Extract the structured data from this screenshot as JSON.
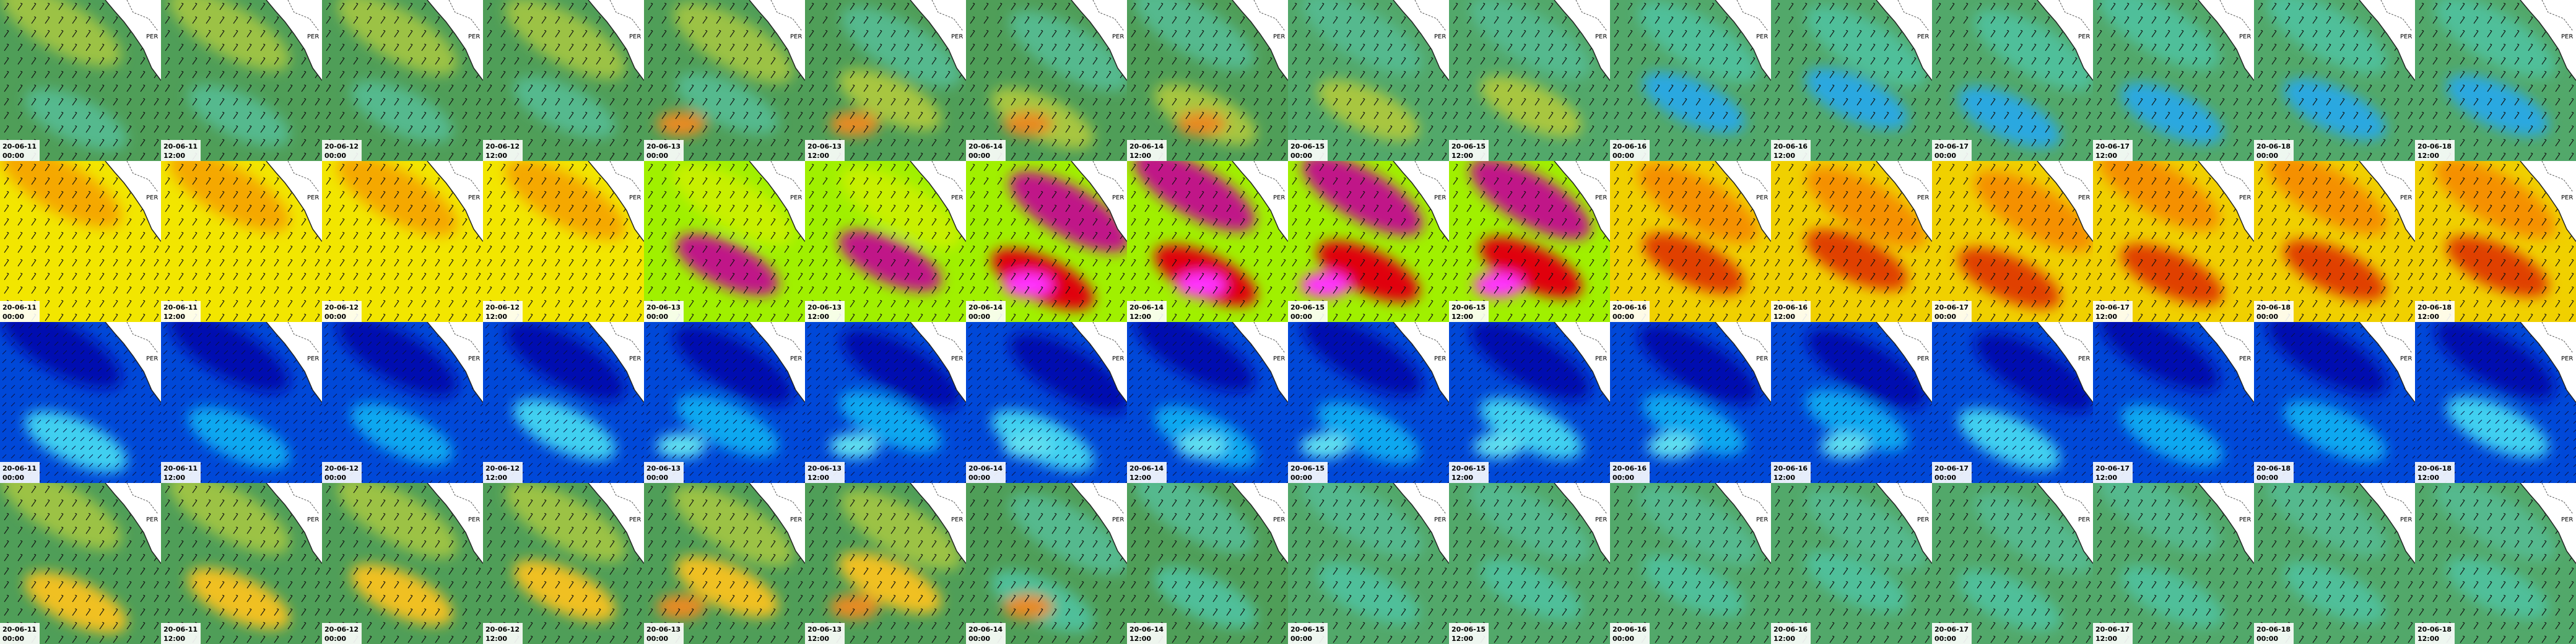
{
  "tiles": {
    "dates": [
      "20-06-11",
      "20-06-11",
      "20-06-12",
      "20-06-12",
      "20-06-13",
      "20-06-13",
      "20-06-14",
      "20-06-14",
      "20-06-15",
      "20-06-15",
      "20-06-16",
      "20-06-16",
      "20-06-17",
      "20-06-17",
      "20-06-18",
      "20-06-18"
    ],
    "times": [
      "00:00",
      "12:00",
      "00:00",
      "12:00",
      "00:00",
      "12:00",
      "00:00",
      "12:00",
      "00:00",
      "12:00",
      "00:00",
      "12:00",
      "00:00",
      "12:00",
      "00:00",
      "12:00"
    ]
  },
  "place_label": "PER"
}
